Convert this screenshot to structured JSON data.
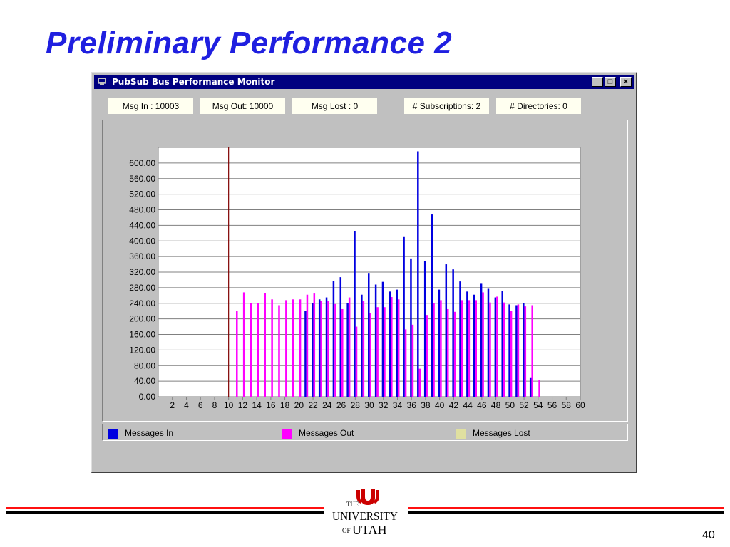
{
  "slide": {
    "title": "Preliminary Performance 2",
    "page_number": "40"
  },
  "window": {
    "title": "PubSub Bus Performance Monitor",
    "icon": "monitor-app-icon",
    "controls": {
      "minimize": "_",
      "maximize": "□",
      "close": "×"
    }
  },
  "stats": {
    "msg_in": "Msg In :  10003",
    "msg_out": "Msg Out:  10000",
    "msg_lost": "Msg Lost : 0",
    "subscriptions": "# Subscriptions: 2",
    "directories": "# Directories: 0"
  },
  "legend": {
    "messages_in": "Messages In",
    "messages_out": "Messages Out",
    "messages_lost": "Messages Lost"
  },
  "colors": {
    "messages_in": "#0000e0",
    "messages_out": "#ff00ff",
    "messages_lost": "#e0e0a0",
    "marker_line": "#800000",
    "title": "#1f1fe0",
    "window_title_bar": "#000080",
    "rule_red": "#ff1010",
    "logo_red": "#cc0000"
  },
  "logo": {
    "the": "THE",
    "university": "UNIVERSITY",
    "of": "OF",
    "utah": "UTAH"
  },
  "chart_data": {
    "type": "bar",
    "xlim": [
      0,
      60
    ],
    "ylim": [
      0,
      640
    ],
    "yticks": [
      0,
      40,
      80,
      120,
      160,
      200,
      240,
      280,
      320,
      360,
      400,
      440,
      480,
      520,
      560,
      600
    ],
    "ytick_labels": [
      "0.00",
      "40.00",
      "80.00",
      "120.00",
      "160.00",
      "200.00",
      "240.00",
      "280.00",
      "320.00",
      "360.00",
      "400.00",
      "440.00",
      "480.00",
      "520.00",
      "560.00",
      "600.00"
    ],
    "xticks": [
      2,
      4,
      6,
      8,
      10,
      12,
      14,
      16,
      18,
      20,
      22,
      24,
      26,
      28,
      30,
      32,
      34,
      36,
      38,
      40,
      42,
      44,
      46,
      48,
      50,
      52,
      54,
      56,
      58,
      60
    ],
    "marker_x": 10,
    "grid": true,
    "legend_position": "bottom",
    "series": [
      {
        "name": "Messages In",
        "x": [
          21,
          22,
          23,
          24,
          25,
          26,
          27,
          28,
          29,
          30,
          31,
          32,
          33,
          34,
          35,
          36,
          37,
          38,
          39,
          40,
          41,
          42,
          43,
          44,
          45,
          46,
          47,
          48,
          49,
          50,
          51,
          52,
          53,
          54
        ],
        "values": [
          220,
          240,
          250,
          255,
          298,
          307,
          240,
          425,
          262,
          316,
          288,
          295,
          270,
          275,
          410,
          355,
          630,
          348,
          468,
          275,
          340,
          327,
          296,
          270,
          262,
          290,
          277,
          255,
          272,
          237,
          235,
          240,
          48,
          0
        ]
      },
      {
        "name": "Messages Out",
        "x": [
          11,
          12,
          13,
          14,
          15,
          16,
          17,
          18,
          19,
          20,
          21,
          22,
          23,
          24,
          25,
          26,
          27,
          28,
          29,
          30,
          31,
          32,
          33,
          34,
          35,
          36,
          37,
          38,
          39,
          40,
          41,
          42,
          43,
          44,
          45,
          46,
          47,
          48,
          49,
          50,
          51,
          52,
          53,
          54
        ],
        "values": [
          220,
          268,
          240,
          240,
          266,
          250,
          235,
          248,
          250,
          250,
          262,
          265,
          246,
          246,
          238,
          225,
          255,
          180,
          245,
          215,
          230,
          230,
          256,
          250,
          173,
          185,
          72,
          210,
          240,
          248,
          225,
          218,
          248,
          248,
          248,
          268,
          242,
          257,
          242,
          220,
          237,
          232,
          235,
          42
        ]
      },
      {
        "name": "Messages Lost",
        "x": [],
        "values": []
      }
    ]
  }
}
